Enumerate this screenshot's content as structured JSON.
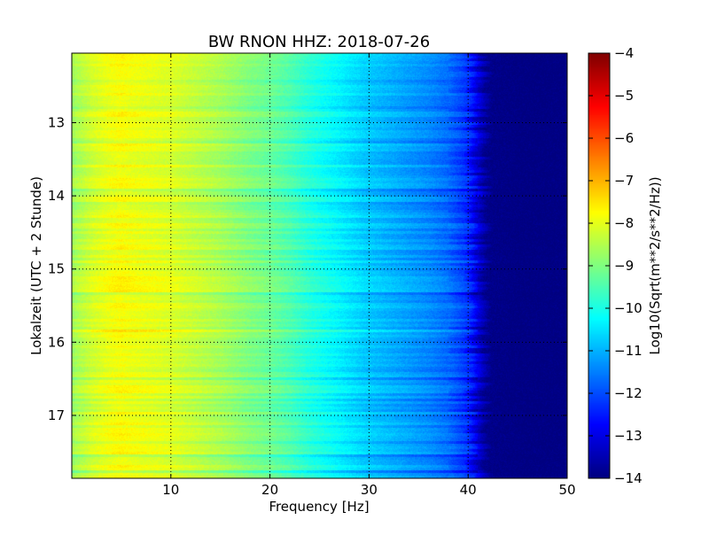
{
  "chart_data": {
    "type": "heatmap",
    "title": "BW RNON HHZ: 2018-07-26",
    "xlabel": "Frequency [Hz]",
    "ylabel": "Lokalzeit (UTC + 2 Stunde)",
    "colorbar_label": "Log10(Sqrt(m**2/s**2/Hz))",
    "colormap": "jet",
    "xlim": [
      0,
      50
    ],
    "ylim": [
      17.86,
      12.05
    ],
    "x_ticks": [
      10,
      20,
      30,
      40,
      50
    ],
    "y_ticks": [
      13,
      14,
      15,
      16,
      17
    ],
    "colorbar_range": [
      -14,
      -4
    ],
    "colorbar_ticks": [
      -4,
      -5,
      -6,
      -7,
      -8,
      -9,
      -10,
      -11,
      -12,
      -13,
      -14
    ],
    "grid": true,
    "spectrum_profile": {
      "frequency_hz": [
        0,
        2,
        4,
        5,
        6,
        8,
        10,
        12,
        15,
        18,
        20,
        22,
        24,
        26,
        28,
        30,
        32,
        34,
        36,
        38,
        40,
        41,
        42,
        45,
        50
      ],
      "log10_psd": [
        -8.7,
        -8.2,
        -7.9,
        -7.8,
        -7.9,
        -8.0,
        -8.1,
        -8.3,
        -8.6,
        -9.0,
        -9.2,
        -9.5,
        -9.9,
        -10.2,
        -10.5,
        -10.8,
        -11.0,
        -11.2,
        -11.4,
        -11.7,
        -12.3,
        -13.2,
        -13.9,
        -14.0,
        -14.0
      ]
    }
  }
}
